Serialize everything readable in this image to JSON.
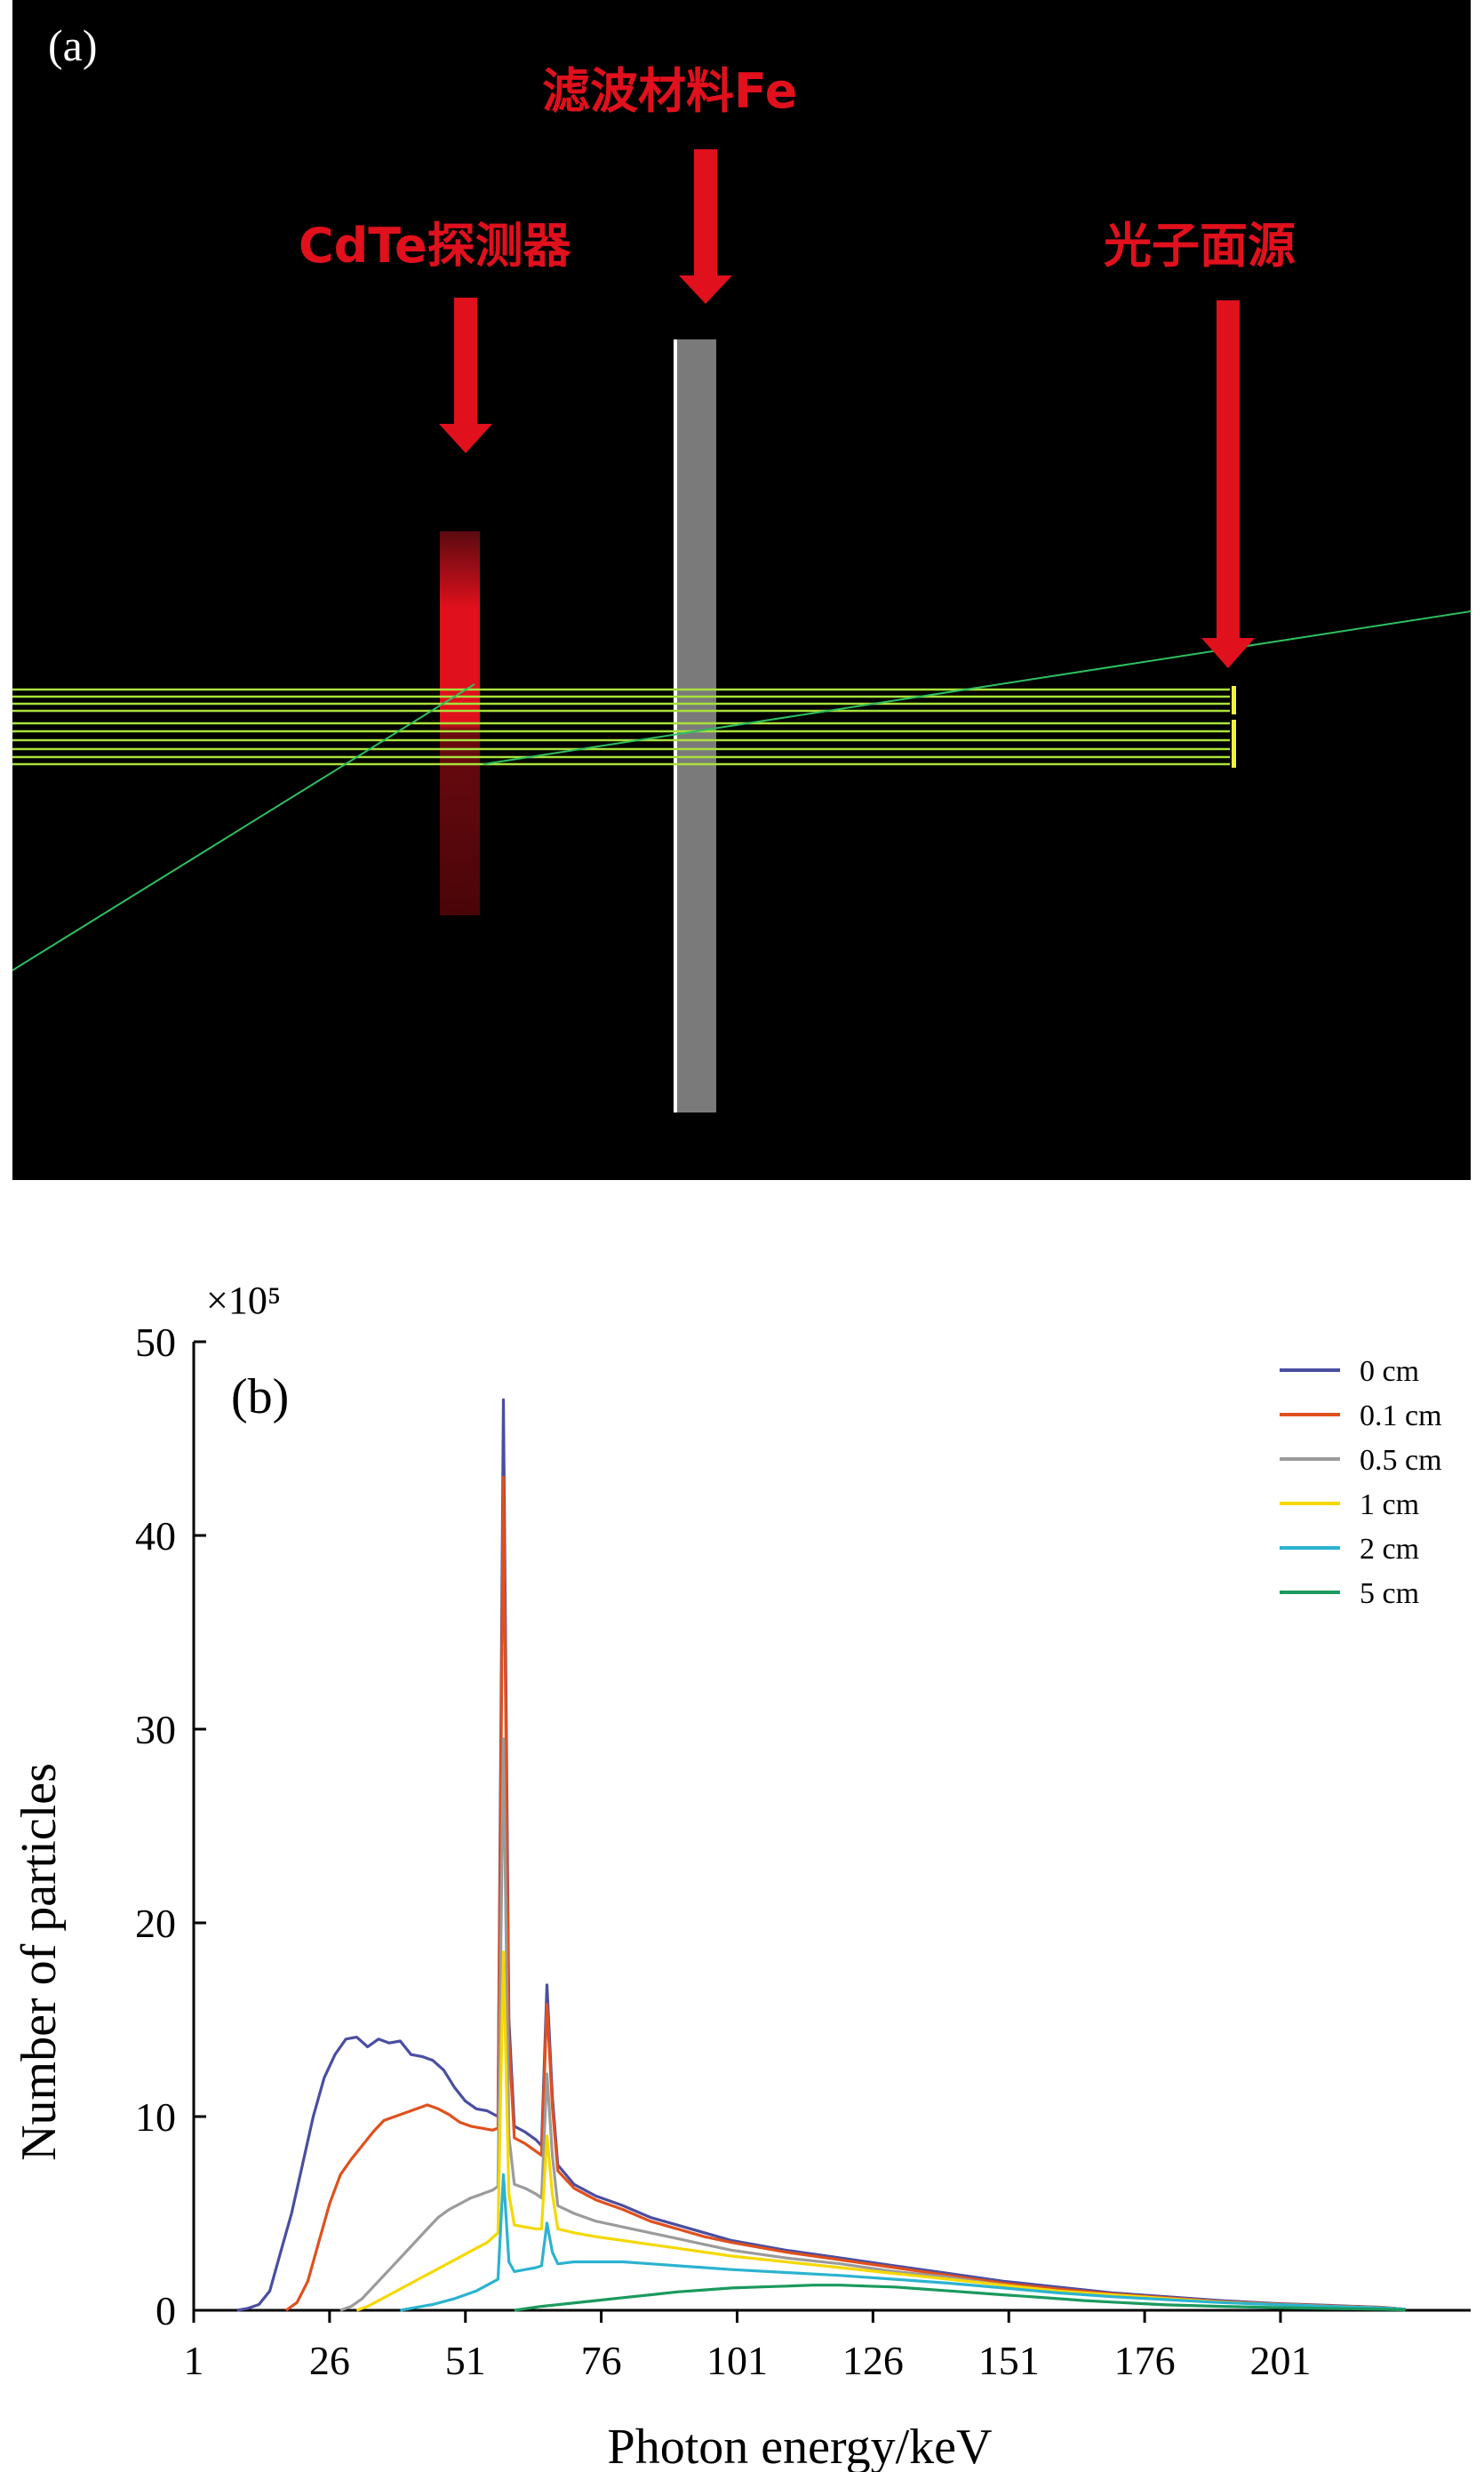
{
  "panel_a": {
    "label": "(a)",
    "callouts": {
      "filter": "滤波材料Fe",
      "detector": "CdTe探测器",
      "source": "光子面源"
    },
    "colors": {
      "background": "#000000",
      "arrow": "#e0101c",
      "beam": "#a8e23a",
      "filter": "#7a7a7a",
      "detector": "#d0101c"
    }
  },
  "chart_data": {
    "type": "line",
    "panel_label": "(b)",
    "xlabel": "Photon energy/keV",
    "ylabel": "Number of particles",
    "y_multiplier": "×10⁵",
    "xlim": [
      1,
      236
    ],
    "ylim": [
      0,
      50
    ],
    "xticks": [
      1,
      26,
      51,
      76,
      101,
      126,
      151,
      176,
      201
    ],
    "yticks": [
      0,
      10,
      20,
      30,
      40,
      50
    ],
    "grid": false,
    "legend_position": "top-right",
    "series": [
      {
        "name": "0 cm",
        "color": "#4a4ea0",
        "points": [
          [
            9,
            0.0
          ],
          [
            11,
            0.1
          ],
          [
            13,
            0.3
          ],
          [
            15,
            1.0
          ],
          [
            17,
            3.0
          ],
          [
            19,
            5.0
          ],
          [
            21,
            7.5
          ],
          [
            23,
            10.0
          ],
          [
            25,
            12.0
          ],
          [
            27,
            13.2
          ],
          [
            29,
            14.0
          ],
          [
            31,
            14.1
          ],
          [
            33,
            13.6
          ],
          [
            35,
            14.0
          ],
          [
            37,
            13.8
          ],
          [
            39,
            13.9
          ],
          [
            41,
            13.2
          ],
          [
            43,
            13.1
          ],
          [
            45,
            12.9
          ],
          [
            47,
            12.4
          ],
          [
            49,
            11.5
          ],
          [
            51,
            10.8
          ],
          [
            53,
            10.4
          ],
          [
            55,
            10.3
          ],
          [
            57,
            10.0
          ],
          [
            58,
            47.0
          ],
          [
            59,
            15.0
          ],
          [
            60,
            9.5
          ],
          [
            62,
            9.2
          ],
          [
            64,
            8.8
          ],
          [
            65,
            8.5
          ],
          [
            66,
            16.8
          ],
          [
            67,
            11.0
          ],
          [
            68,
            7.5
          ],
          [
            71,
            6.5
          ],
          [
            75,
            5.9
          ],
          [
            80,
            5.4
          ],
          [
            85,
            4.8
          ],
          [
            90,
            4.4
          ],
          [
            95,
            4.0
          ],
          [
            100,
            3.6
          ],
          [
            110,
            3.1
          ],
          [
            120,
            2.7
          ],
          [
            130,
            2.3
          ],
          [
            140,
            1.9
          ],
          [
            150,
            1.5
          ],
          [
            160,
            1.2
          ],
          [
            170,
            0.9
          ],
          [
            180,
            0.7
          ],
          [
            190,
            0.5
          ],
          [
            200,
            0.35
          ],
          [
            210,
            0.25
          ],
          [
            220,
            0.15
          ],
          [
            224,
            0.05
          ]
        ]
      },
      {
        "name": "0.1 cm",
        "color": "#e0501e",
        "points": [
          [
            18,
            0.0
          ],
          [
            20,
            0.4
          ],
          [
            22,
            1.5
          ],
          [
            24,
            3.5
          ],
          [
            26,
            5.5
          ],
          [
            28,
            7.0
          ],
          [
            30,
            7.8
          ],
          [
            32,
            8.5
          ],
          [
            34,
            9.2
          ],
          [
            36,
            9.8
          ],
          [
            38,
            10.0
          ],
          [
            40,
            10.2
          ],
          [
            42,
            10.4
          ],
          [
            44,
            10.6
          ],
          [
            46,
            10.4
          ],
          [
            48,
            10.1
          ],
          [
            50,
            9.7
          ],
          [
            52,
            9.5
          ],
          [
            54,
            9.4
          ],
          [
            56,
            9.3
          ],
          [
            57,
            9.4
          ],
          [
            58,
            43.0
          ],
          [
            59,
            14.0
          ],
          [
            60,
            8.9
          ],
          [
            62,
            8.6
          ],
          [
            64,
            8.2
          ],
          [
            65,
            8.0
          ],
          [
            66,
            15.8
          ],
          [
            67,
            10.5
          ],
          [
            68,
            7.2
          ],
          [
            71,
            6.3
          ],
          [
            75,
            5.7
          ],
          [
            80,
            5.2
          ],
          [
            85,
            4.6
          ],
          [
            90,
            4.2
          ],
          [
            95,
            3.8
          ],
          [
            100,
            3.5
          ],
          [
            110,
            3.0
          ],
          [
            120,
            2.6
          ],
          [
            130,
            2.2
          ],
          [
            140,
            1.8
          ],
          [
            150,
            1.4
          ],
          [
            160,
            1.1
          ],
          [
            170,
            0.85
          ],
          [
            180,
            0.65
          ],
          [
            190,
            0.45
          ],
          [
            200,
            0.33
          ],
          [
            210,
            0.23
          ],
          [
            220,
            0.14
          ],
          [
            224,
            0.05
          ]
        ]
      },
      {
        "name": "0.5 cm",
        "color": "#9b9b9b",
        "points": [
          [
            28,
            0.0
          ],
          [
            30,
            0.2
          ],
          [
            32,
            0.6
          ],
          [
            34,
            1.2
          ],
          [
            36,
            1.8
          ],
          [
            38,
            2.4
          ],
          [
            40,
            3.0
          ],
          [
            42,
            3.6
          ],
          [
            44,
            4.2
          ],
          [
            46,
            4.8
          ],
          [
            48,
            5.2
          ],
          [
            50,
            5.5
          ],
          [
            52,
            5.8
          ],
          [
            54,
            6.0
          ],
          [
            56,
            6.2
          ],
          [
            57,
            6.4
          ],
          [
            58,
            29.5
          ],
          [
            59,
            9.0
          ],
          [
            60,
            6.5
          ],
          [
            62,
            6.3
          ],
          [
            64,
            6.0
          ],
          [
            65,
            5.8
          ],
          [
            66,
            12.2
          ],
          [
            67,
            8.0
          ],
          [
            68,
            5.4
          ],
          [
            71,
            5.0
          ],
          [
            75,
            4.6
          ],
          [
            80,
            4.3
          ],
          [
            85,
            4.0
          ],
          [
            90,
            3.7
          ],
          [
            95,
            3.4
          ],
          [
            100,
            3.1
          ],
          [
            110,
            2.7
          ],
          [
            120,
            2.4
          ],
          [
            130,
            2.0
          ],
          [
            140,
            1.7
          ],
          [
            150,
            1.3
          ],
          [
            160,
            1.0
          ],
          [
            170,
            0.8
          ],
          [
            180,
            0.6
          ],
          [
            190,
            0.42
          ],
          [
            200,
            0.3
          ],
          [
            210,
            0.2
          ],
          [
            220,
            0.12
          ],
          [
            224,
            0.05
          ]
        ]
      },
      {
        "name": "1 cm",
        "color": "#f5d800",
        "points": [
          [
            31,
            0.0
          ],
          [
            33,
            0.2
          ],
          [
            35,
            0.5
          ],
          [
            37,
            0.8
          ],
          [
            39,
            1.1
          ],
          [
            41,
            1.4
          ],
          [
            43,
            1.7
          ],
          [
            45,
            2.0
          ],
          [
            47,
            2.3
          ],
          [
            49,
            2.6
          ],
          [
            51,
            2.9
          ],
          [
            53,
            3.2
          ],
          [
            55,
            3.5
          ],
          [
            57,
            4.0
          ],
          [
            58,
            18.5
          ],
          [
            59,
            6.0
          ],
          [
            60,
            4.4
          ],
          [
            62,
            4.3
          ],
          [
            64,
            4.2
          ],
          [
            65,
            4.2
          ],
          [
            66,
            9.0
          ],
          [
            67,
            6.0
          ],
          [
            68,
            4.2
          ],
          [
            71,
            4.0
          ],
          [
            75,
            3.8
          ],
          [
            80,
            3.6
          ],
          [
            85,
            3.4
          ],
          [
            90,
            3.2
          ],
          [
            95,
            3.0
          ],
          [
            100,
            2.8
          ],
          [
            110,
            2.5
          ],
          [
            120,
            2.2
          ],
          [
            130,
            1.9
          ],
          [
            140,
            1.6
          ],
          [
            150,
            1.3
          ],
          [
            160,
            1.0
          ],
          [
            170,
            0.8
          ],
          [
            180,
            0.6
          ],
          [
            190,
            0.42
          ],
          [
            200,
            0.3
          ],
          [
            210,
            0.2
          ],
          [
            220,
            0.12
          ],
          [
            224,
            0.05
          ]
        ]
      },
      {
        "name": "2 cm",
        "color": "#2bb3d0",
        "points": [
          [
            39,
            0.0
          ],
          [
            41,
            0.1
          ],
          [
            43,
            0.2
          ],
          [
            45,
            0.3
          ],
          [
            47,
            0.45
          ],
          [
            49,
            0.6
          ],
          [
            51,
            0.8
          ],
          [
            53,
            1.0
          ],
          [
            55,
            1.3
          ],
          [
            57,
            1.6
          ],
          [
            58,
            7.0
          ],
          [
            59,
            2.5
          ],
          [
            60,
            2.0
          ],
          [
            62,
            2.1
          ],
          [
            64,
            2.2
          ],
          [
            65,
            2.3
          ],
          [
            66,
            4.5
          ],
          [
            67,
            3.0
          ],
          [
            68,
            2.4
          ],
          [
            71,
            2.5
          ],
          [
            75,
            2.5
          ],
          [
            80,
            2.5
          ],
          [
            85,
            2.4
          ],
          [
            90,
            2.3
          ],
          [
            95,
            2.2
          ],
          [
            100,
            2.1
          ],
          [
            110,
            1.95
          ],
          [
            120,
            1.8
          ],
          [
            130,
            1.6
          ],
          [
            140,
            1.4
          ],
          [
            150,
            1.15
          ],
          [
            160,
            0.9
          ],
          [
            170,
            0.7
          ],
          [
            180,
            0.55
          ],
          [
            190,
            0.4
          ],
          [
            200,
            0.3
          ],
          [
            210,
            0.2
          ],
          [
            220,
            0.12
          ],
          [
            224,
            0.05
          ]
        ]
      },
      {
        "name": "5 cm",
        "color": "#1a9a5e",
        "points": [
          [
            60,
            0.0
          ],
          [
            65,
            0.2
          ],
          [
            70,
            0.35
          ],
          [
            75,
            0.5
          ],
          [
            80,
            0.65
          ],
          [
            85,
            0.8
          ],
          [
            90,
            0.95
          ],
          [
            95,
            1.05
          ],
          [
            100,
            1.15
          ],
          [
            105,
            1.2
          ],
          [
            110,
            1.25
          ],
          [
            115,
            1.3
          ],
          [
            120,
            1.3
          ],
          [
            125,
            1.25
          ],
          [
            130,
            1.2
          ],
          [
            135,
            1.1
          ],
          [
            140,
            1.0
          ],
          [
            145,
            0.9
          ],
          [
            150,
            0.8
          ],
          [
            155,
            0.7
          ],
          [
            160,
            0.6
          ],
          [
            165,
            0.5
          ],
          [
            170,
            0.42
          ],
          [
            175,
            0.35
          ],
          [
            180,
            0.28
          ],
          [
            190,
            0.2
          ],
          [
            200,
            0.14
          ],
          [
            210,
            0.09
          ],
          [
            220,
            0.05
          ],
          [
            224,
            0.02
          ]
        ]
      }
    ]
  }
}
